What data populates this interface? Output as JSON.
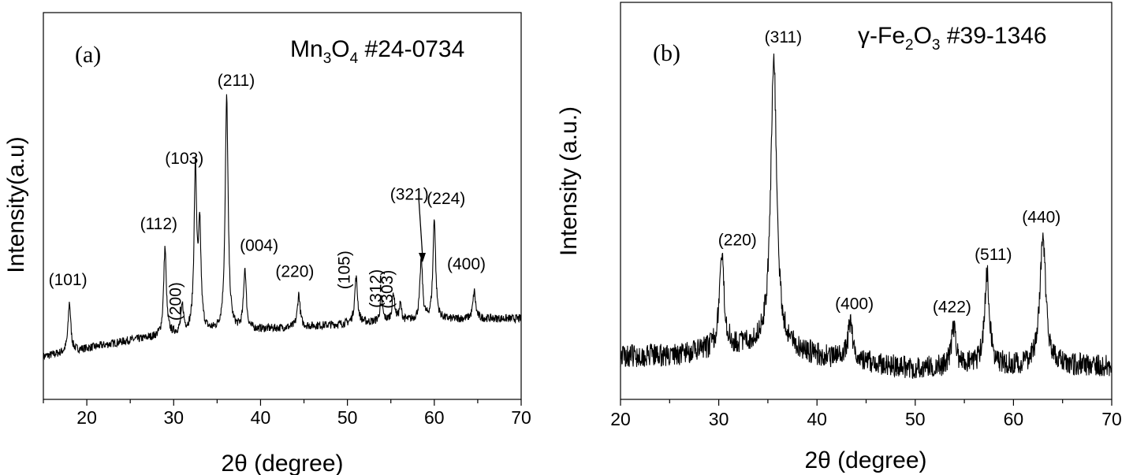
{
  "chart_data": [
    {
      "type": "line",
      "panel_label": "(a)",
      "reference": {
        "formula": "Mn",
        "sub1": "3",
        "mid": "O",
        "sub2": "4",
        "card": " #24-0734"
      },
      "xlabel": "2θ (degree)",
      "ylabel": "Intensity(a.u)",
      "xlim": [
        15,
        70
      ],
      "ylim": [
        0,
        100
      ],
      "x_ticks": [
        20,
        30,
        40,
        50,
        60,
        70
      ],
      "baseline": [
        [
          15,
          5
        ],
        [
          20,
          8
        ],
        [
          25,
          11
        ],
        [
          30,
          13
        ],
        [
          35,
          14
        ],
        [
          40,
          15
        ],
        [
          45,
          16
        ],
        [
          50,
          17
        ],
        [
          55,
          18
        ],
        [
          60,
          18.5
        ],
        [
          65,
          19
        ],
        [
          70,
          19
        ]
      ],
      "peaks": [
        {
          "hkl": "(101)",
          "x": 18.0,
          "y": 25,
          "w": 0.18
        },
        {
          "hkl": "(112)",
          "x": 29.0,
          "y": 45,
          "w": 0.18
        },
        {
          "hkl": "(200)",
          "x": 31.0,
          "y": 23,
          "w": 0.18
        },
        {
          "hkl": "(103)",
          "x": 32.5,
          "y": 73,
          "w": 0.18
        },
        {
          "hkl": "",
          "x": 33.0,
          "y": 50,
          "w": 0.18
        },
        {
          "hkl": "(211)",
          "x": 36.1,
          "y": 100,
          "w": 0.2
        },
        {
          "hkl": "(004)",
          "x": 38.2,
          "y": 37,
          "w": 0.18
        },
        {
          "hkl": "(220)",
          "x": 44.4,
          "y": 28,
          "w": 0.18
        },
        {
          "hkl": "(105)",
          "x": 51.0,
          "y": 34,
          "w": 0.2
        },
        {
          "hkl": "(312)",
          "x": 53.9,
          "y": 26,
          "w": 0.18
        },
        {
          "hkl": "",
          "x": 55.3,
          "y": 28,
          "w": 0.18
        },
        {
          "hkl": "(303)",
          "x": 56.1,
          "y": 24,
          "w": 0.15
        },
        {
          "hkl": "(321)",
          "x": 58.5,
          "y": 41,
          "w": 0.18
        },
        {
          "hkl": "(224)",
          "x": 60.0,
          "y": 56,
          "w": 0.18
        },
        {
          "hkl": "(400)",
          "x": 64.6,
          "y": 29,
          "w": 0.18
        }
      ]
    },
    {
      "type": "line",
      "panel_label": "(b)",
      "reference": {
        "formula": "γ-Fe",
        "sub1": "2",
        "mid": "O",
        "sub2": "3",
        "card": " #39-1346"
      },
      "xlabel": "2θ (degree)",
      "ylabel": "Intensity (a.u.)",
      "xlim": [
        20,
        70
      ],
      "ylim": [
        0,
        100
      ],
      "x_ticks": [
        20,
        30,
        40,
        50,
        60,
        70
      ],
      "baseline": [
        [
          20,
          8
        ],
        [
          25,
          8
        ],
        [
          30,
          10
        ],
        [
          35,
          12
        ],
        [
          40,
          8
        ],
        [
          45,
          6
        ],
        [
          50,
          4
        ],
        [
          55,
          5
        ],
        [
          60,
          5
        ],
        [
          65,
          5
        ],
        [
          70,
          5
        ]
      ],
      "peaks": [
        {
          "hkl": "(220)",
          "x": 30.3,
          "y": 38,
          "w": 0.3
        },
        {
          "hkl": "(311)",
          "x": 35.6,
          "y": 100,
          "w": 0.35
        },
        {
          "hkl": "(400)",
          "x": 43.4,
          "y": 18,
          "w": 0.3
        },
        {
          "hkl": "(422)",
          "x": 53.9,
          "y": 17,
          "w": 0.25
        },
        {
          "hkl": "(511)",
          "x": 57.3,
          "y": 33,
          "w": 0.3
        },
        {
          "hkl": "(440)",
          "x": 63.0,
          "y": 45,
          "w": 0.35
        }
      ]
    }
  ]
}
